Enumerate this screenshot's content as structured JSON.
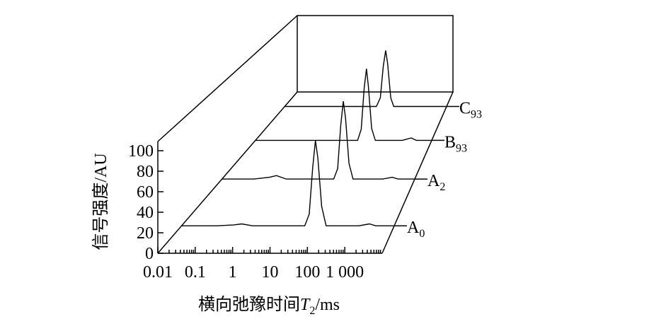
{
  "chart_data": {
    "type": "waterfall",
    "xlabel": [
      "横向弛豫时间",
      "T",
      "2",
      "/ms"
    ],
    "ylabel": "信号强度/AU",
    "xscale": "log",
    "xlim": [
      0.01,
      10000
    ],
    "xticks": [
      0.01,
      0.1,
      1,
      10,
      100,
      {
        "value": 1000,
        "label": "1 000"
      }
    ],
    "ylim": [
      0,
      109
    ],
    "yticks": [
      0,
      20,
      40,
      60,
      80,
      100
    ],
    "color": "#000000",
    "series": [
      {
        "name": "A0",
        "x": [
          0.01,
          0.1,
          0.3,
          0.5,
          1,
          10,
          30,
          40,
          50,
          60,
          70,
          90,
          120,
          1000,
          2000,
          3000,
          10000
        ],
        "values": [
          0,
          0,
          1,
          2,
          0,
          0,
          0,
          12,
          60,
          88,
          70,
          20,
          0,
          0,
          2,
          0,
          0
        ]
      },
      {
        "name": "A2",
        "x": [
          0.01,
          0.1,
          0.3,
          0.5,
          1,
          10,
          30,
          40,
          50,
          60,
          70,
          90,
          120,
          1000,
          2000,
          3000,
          10000
        ],
        "values": [
          0,
          0,
          2,
          4,
          0,
          0,
          0,
          12,
          62,
          89,
          70,
          18,
          0,
          0,
          2,
          0,
          0
        ]
      },
      {
        "name": "B93",
        "x": [
          0.01,
          0.1,
          1,
          10,
          30,
          40,
          50,
          60,
          70,
          90,
          120,
          1000,
          2000,
          3000,
          10000
        ],
        "values": [
          0,
          0,
          0,
          0,
          0,
          14,
          65,
          90,
          68,
          15,
          0,
          0,
          3,
          0,
          0
        ]
      },
      {
        "name": "C93",
        "x": [
          0.01,
          0.1,
          1,
          10,
          25,
          35,
          45,
          55,
          65,
          85,
          110,
          1000,
          10000
        ],
        "values": [
          0,
          0,
          0,
          0,
          0,
          12,
          55,
          77,
          60,
          12,
          0,
          0,
          0
        ]
      }
    ]
  }
}
